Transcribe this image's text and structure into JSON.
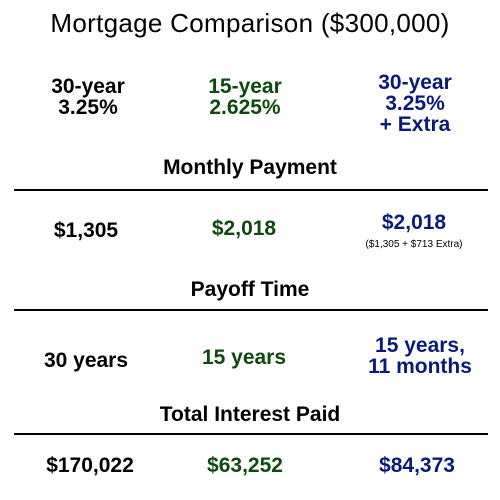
{
  "title": "Mortgage Comparison ($300,000)",
  "colors": {
    "col_a": "#000000",
    "col_b": "#0d4a0d",
    "col_c": "#0a1a7a"
  },
  "headers": {
    "a": [
      "30-year",
      "3.25%"
    ],
    "b": [
      "15-year",
      "2.625%"
    ],
    "c": [
      "30-year",
      "3.25%",
      "+ Extra"
    ]
  },
  "sections": {
    "monthly_payment": {
      "label": "Monthly Payment",
      "a": "$1,305",
      "b": "$2,018",
      "c": "$2,018",
      "c_note": "($1,305 + $713 Extra)"
    },
    "payoff_time": {
      "label": "Payoff Time",
      "a": "30 years",
      "b": "15 years",
      "c": [
        "15 years,",
        "11 months"
      ]
    },
    "total_interest": {
      "label": "Total Interest Paid",
      "a": "$170,022",
      "b": "$63,252",
      "c": "$84,373"
    }
  }
}
